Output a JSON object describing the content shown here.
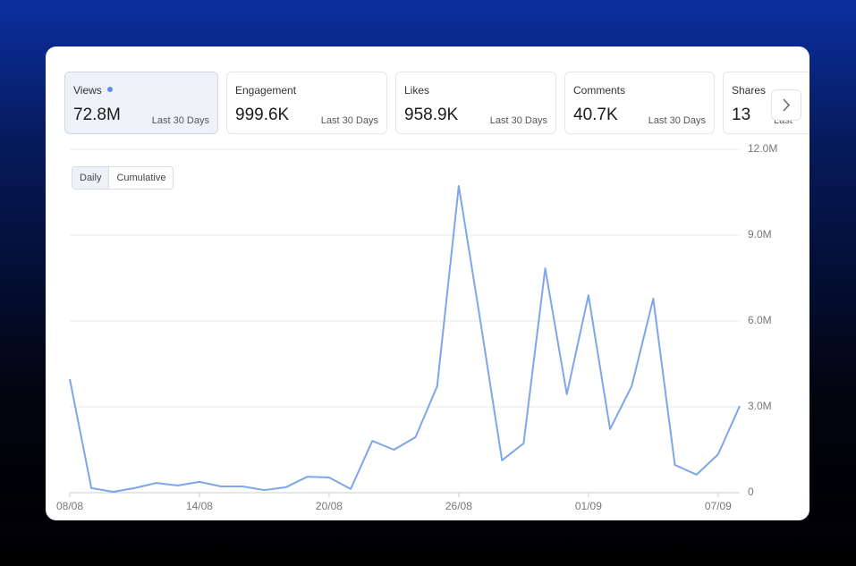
{
  "metrics": [
    {
      "label": "Views",
      "value": "72.8M",
      "period": "Last 30 Days"
    },
    {
      "label": "Engagement",
      "value": "999.6K",
      "period": "Last 30 Days"
    },
    {
      "label": "Likes",
      "value": "958.9K",
      "period": "Last 30 Days"
    },
    {
      "label": "Comments",
      "value": "40.7K",
      "period": "Last 30 Days"
    },
    {
      "label": "Shares",
      "value": "13",
      "period": "Last"
    }
  ],
  "toggle": [
    "Daily",
    "Cumulative"
  ],
  "chart_data": {
    "type": "line",
    "categories": [
      "08/08",
      null,
      null,
      null,
      null,
      null,
      "14/08",
      null,
      null,
      null,
      null,
      null,
      "20/08",
      null,
      null,
      null,
      null,
      null,
      "26/08",
      null,
      null,
      null,
      null,
      null,
      "01/09",
      null,
      null,
      null,
      null,
      null,
      "07/09",
      null
    ],
    "series": [
      {
        "name": "Views",
        "color": "#7ea6ea",
        "values": [
          3970000,
          160000,
          30000,
          160000,
          340000,
          250000,
          380000,
          220000,
          220000,
          90000,
          190000,
          560000,
          530000,
          130000,
          1810000,
          1500000,
          1940000,
          3720000,
          10720000,
          6000000,
          1130000,
          1720000,
          7840000,
          3440000,
          6900000,
          2220000,
          3720000,
          6780000,
          970000,
          630000,
          1340000,
          3030000
        ]
      }
    ],
    "ylim": [
      0,
      12000000
    ],
    "yticks": [
      0,
      {
        "value": 3000000,
        "label": "3.0M"
      },
      {
        "value": 6000000,
        "label": "6.0M"
      },
      {
        "value": 9000000,
        "label": "9.0M"
      },
      {
        "value": 12000000,
        "label": "12.0M"
      }
    ],
    "grid": true
  }
}
